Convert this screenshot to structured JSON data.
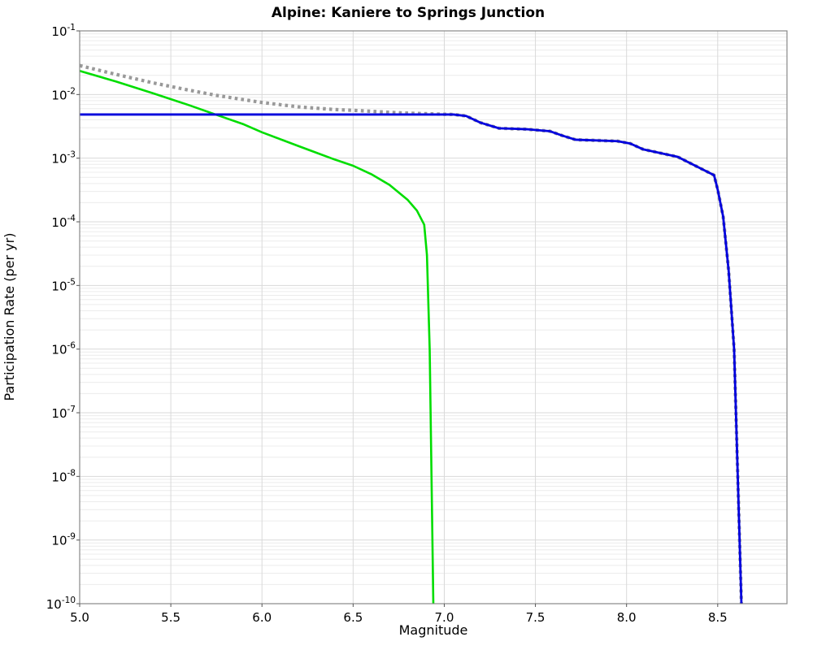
{
  "title": "Alpine: Kaniere to Springs Junction",
  "colors": {
    "background": "#ffffff",
    "grid_major": "#d9d9d9",
    "grid_minor": "#ececec",
    "spine": "#888888",
    "tick": "#555555",
    "text": "#000000",
    "series_gray": "#999999",
    "series_green": "#00dd00",
    "series_blue": "#0000dd"
  },
  "chart_data": {
    "type": "line",
    "title": "Alpine: Kaniere to Springs Junction",
    "xlabel": "Magnitude",
    "ylabel": "Participation Rate (per yr)",
    "legend": null,
    "grid": {
      "vertical_major": true,
      "horizontal_major": true,
      "horizontal_log_minor": true
    },
    "x_axis": {
      "min": 5.0,
      "max": 8.88,
      "ticks": [
        5.0,
        5.5,
        6.0,
        6.5,
        7.0,
        7.5,
        8.0,
        8.5
      ],
      "tick_labels": [
        "5.0",
        "5.5",
        "6.0",
        "6.5",
        "7.0",
        "7.5",
        "8.0",
        "8.5"
      ]
    },
    "y_axis": {
      "scale": "log",
      "min": 1e-10,
      "max": 0.1,
      "tick_exponents": [
        -1,
        -2,
        -3,
        -4,
        -5,
        -6,
        -7,
        -8,
        -9,
        -10
      ]
    },
    "series": [
      {
        "name": "gray-dotted-total-curve",
        "color": "#999999",
        "line_style": "dotted",
        "line_width": 4.2,
        "points": [
          [
            5.0,
            0.0285
          ],
          [
            5.2,
            0.0207
          ],
          [
            5.4,
            0.0153
          ],
          [
            5.6,
            0.0117
          ],
          [
            5.75,
            0.0097
          ],
          [
            5.9,
            0.0083
          ],
          [
            6.0,
            0.0075
          ],
          [
            6.2,
            0.0064
          ],
          [
            6.4,
            0.0058
          ],
          [
            6.5,
            0.00565
          ],
          [
            6.6,
            0.00545
          ],
          [
            6.7,
            0.00525
          ],
          [
            6.8,
            0.0051
          ],
          [
            6.9,
            0.005
          ],
          [
            7.0,
            0.0049
          ],
          [
            7.05,
            0.00487
          ],
          [
            7.12,
            0.0046
          ],
          [
            7.2,
            0.0036
          ],
          [
            7.3,
            0.00295
          ],
          [
            7.45,
            0.00285
          ],
          [
            7.58,
            0.00265
          ],
          [
            7.65,
            0.00225
          ],
          [
            7.72,
            0.00195
          ],
          [
            7.95,
            0.00185
          ],
          [
            8.02,
            0.0017
          ],
          [
            8.09,
            0.00138
          ],
          [
            8.28,
            0.00105
          ],
          [
            8.48,
            0.00054
          ],
          [
            8.5,
            0.00032
          ],
          [
            8.53,
            0.00012
          ],
          [
            8.56,
            1.7e-05
          ],
          [
            8.59,
            1e-06
          ],
          [
            8.61,
            1e-08
          ],
          [
            8.63,
            1e-10
          ]
        ]
      },
      {
        "name": "green-solid-curve",
        "color": "#00dd00",
        "line_style": "solid",
        "line_width": 2.6,
        "points": [
          [
            5.0,
            0.0235
          ],
          [
            5.2,
            0.016
          ],
          [
            5.4,
            0.0105
          ],
          [
            5.6,
            0.0068
          ],
          [
            5.75,
            0.0048
          ],
          [
            5.9,
            0.0034
          ],
          [
            6.0,
            0.00255
          ],
          [
            6.2,
            0.00155
          ],
          [
            6.4,
            0.00095
          ],
          [
            6.5,
            0.00076
          ],
          [
            6.6,
            0.00056
          ],
          [
            6.7,
            0.00038
          ],
          [
            6.8,
            0.00022
          ],
          [
            6.85,
            0.00015
          ],
          [
            6.89,
            9e-05
          ],
          [
            6.905,
            3e-05
          ],
          [
            6.92,
            1e-06
          ],
          [
            6.93,
            1e-08
          ],
          [
            6.94,
            1e-10
          ]
        ]
      },
      {
        "name": "blue-solid-curve",
        "color": "#0000dd",
        "line_style": "solid",
        "line_width": 2.8,
        "points": [
          [
            5.0,
            0.00485
          ],
          [
            7.05,
            0.00485
          ],
          [
            7.12,
            0.0046
          ],
          [
            7.2,
            0.0036
          ],
          [
            7.3,
            0.00295
          ],
          [
            7.45,
            0.00285
          ],
          [
            7.58,
            0.00265
          ],
          [
            7.65,
            0.00225
          ],
          [
            7.72,
            0.00195
          ],
          [
            7.95,
            0.00185
          ],
          [
            8.02,
            0.0017
          ],
          [
            8.09,
            0.00138
          ],
          [
            8.28,
            0.00105
          ],
          [
            8.48,
            0.00054
          ],
          [
            8.5,
            0.00032
          ],
          [
            8.53,
            0.00012
          ],
          [
            8.56,
            1.7e-05
          ],
          [
            8.59,
            1e-06
          ],
          [
            8.61,
            1e-08
          ],
          [
            8.63,
            1e-10
          ]
        ]
      }
    ]
  }
}
